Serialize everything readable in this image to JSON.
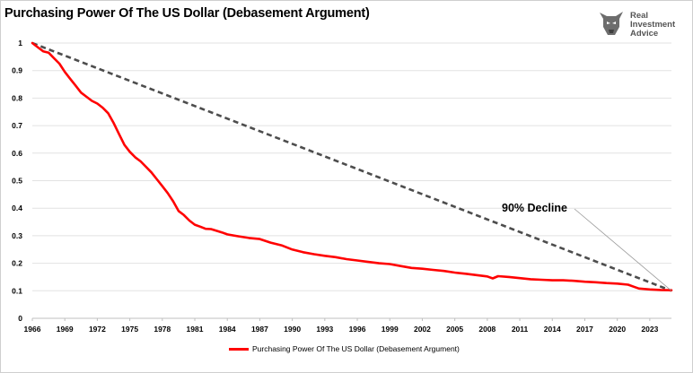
{
  "title": "Purchasing Power Of The US Dollar (Debasement Argument)",
  "logo": {
    "icon": "bull-head-icon",
    "lines": [
      "Real",
      "Investment",
      "Advice"
    ]
  },
  "colors": {
    "series": "#ff0000",
    "trend": "#4d4d4d",
    "grid": "#e2e2e2",
    "axis": "#bfbfbf"
  },
  "chart_data": {
    "type": "line",
    "title": "Purchasing Power Of The US Dollar (Debasement Argument)",
    "xlabel": "",
    "ylabel": "",
    "xlim": [
      1966,
      2025
    ],
    "ylim": [
      0,
      1
    ],
    "y_ticks": [
      "0",
      "0.1",
      "0.2",
      "0.3",
      "0.4",
      "0.5",
      "0.6",
      "0.7",
      "0.8",
      "0.9",
      "1"
    ],
    "x_ticks": [
      "1966",
      "1969",
      "1972",
      "1975",
      "1978",
      "1981",
      "1984",
      "1987",
      "1990",
      "1993",
      "1996",
      "1999",
      "2002",
      "2005",
      "2008",
      "2011",
      "2014",
      "2017",
      "2020",
      "2023"
    ],
    "grid": "horizontal",
    "legend_position": "bottom",
    "series": [
      {
        "name": "Purchasing Power Of The US Dollar (Debasement Argument)",
        "style": "solid",
        "x": [
          1966,
          1966.5,
          1967,
          1967.5,
          1968,
          1968.5,
          1969,
          1969.5,
          1970,
          1970.5,
          1971,
          1971.5,
          1972,
          1972.5,
          1973,
          1973.5,
          1974,
          1974.5,
          1975,
          1975.5,
          1976,
          1976.5,
          1977,
          1977.5,
          1978,
          1978.5,
          1979,
          1979.5,
          1980,
          1980.5,
          1981,
          1981.5,
          1982,
          1982.5,
          1983,
          1983.5,
          1984,
          1985,
          1986,
          1987,
          1988,
          1989,
          1990,
          1991,
          1992,
          1993,
          1994,
          1995,
          1996,
          1997,
          1998,
          1999,
          2000,
          2001,
          2002,
          2003,
          2004,
          2005,
          2006,
          2007,
          2008,
          2008.5,
          2009,
          2010,
          2011,
          2012,
          2013,
          2014,
          2015,
          2016,
          2017,
          2018,
          2019,
          2020,
          2021,
          2021.5,
          2022,
          2023,
          2024,
          2025
        ],
        "values": [
          1.0,
          0.985,
          0.97,
          0.965,
          0.945,
          0.925,
          0.895,
          0.87,
          0.845,
          0.82,
          0.805,
          0.79,
          0.78,
          0.765,
          0.745,
          0.71,
          0.67,
          0.63,
          0.605,
          0.585,
          0.57,
          0.55,
          0.53,
          0.505,
          0.48,
          0.455,
          0.425,
          0.39,
          0.375,
          0.355,
          0.34,
          0.333,
          0.325,
          0.324,
          0.318,
          0.312,
          0.305,
          0.298,
          0.292,
          0.288,
          0.275,
          0.265,
          0.25,
          0.24,
          0.233,
          0.227,
          0.222,
          0.215,
          0.21,
          0.205,
          0.2,
          0.197,
          0.19,
          0.183,
          0.18,
          0.176,
          0.172,
          0.166,
          0.162,
          0.157,
          0.152,
          0.145,
          0.153,
          0.15,
          0.146,
          0.142,
          0.14,
          0.138,
          0.138,
          0.136,
          0.133,
          0.131,
          0.128,
          0.126,
          0.122,
          0.115,
          0.108,
          0.105,
          0.103,
          0.102
        ]
      },
      {
        "style": "dashed",
        "x": [
          1966,
          2025
        ],
        "values": [
          1.0,
          0.1
        ]
      }
    ],
    "annotations": [
      {
        "text": "90% Decline",
        "x": 2025,
        "y": 0.1
      }
    ]
  }
}
